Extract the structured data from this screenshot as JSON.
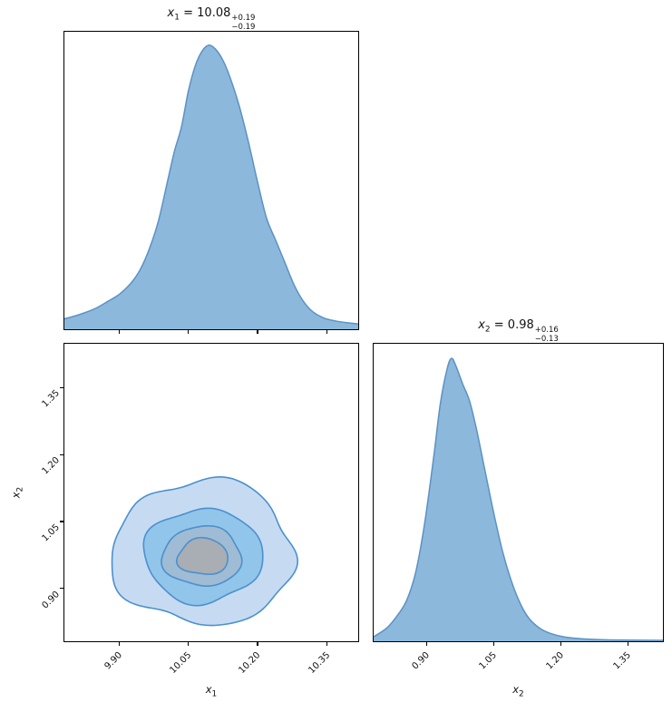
{
  "colors": {
    "kde_fill": "#8cb8dc",
    "kde_line": "#5b92c4",
    "contour_line": "#4a90ce",
    "contour_fills": [
      "#c6dbf2",
      "#92c5ea",
      "#9fbcd4",
      "#a8aeb4"
    ],
    "spine": "#000000",
    "text": "#111111"
  },
  "titles": {
    "x1": {
      "var": "x",
      "sub": "1",
      "eq": " = ",
      "value": "10.08",
      "plus": "+0.19",
      "minus": "−0.19"
    },
    "x2": {
      "var": "x",
      "sub": "2",
      "eq": " = ",
      "value": "0.98",
      "plus": "+0.16",
      "minus": "−0.13"
    }
  },
  "axis_labels": {
    "x1": {
      "var": "x",
      "sub": "1"
    },
    "x2": {
      "var": "x",
      "sub": "2"
    }
  },
  "chart_data": [
    {
      "id": "x1_marginal",
      "type": "area",
      "title": "x1 = 10.08 +0.19 / −0.19",
      "xlim": [
        9.78,
        10.42
      ],
      "xticks": [
        9.9,
        10.05,
        10.2,
        10.35
      ],
      "xtick_labels": [],
      "x": [
        9.78,
        9.81,
        9.845,
        9.875,
        9.9,
        9.925,
        9.945,
        9.965,
        9.985,
        10.005,
        10.02,
        10.035,
        10.05,
        10.065,
        10.08,
        10.095,
        10.11,
        10.125,
        10.14,
        10.16,
        10.18,
        10.2,
        10.22,
        10.24,
        10.26,
        10.28,
        10.3,
        10.32,
        10.345,
        10.37,
        10.395,
        10.42
      ],
      "density": [
        0.035,
        0.048,
        0.068,
        0.094,
        0.118,
        0.155,
        0.2,
        0.27,
        0.365,
        0.5,
        0.6,
        0.68,
        0.8,
        0.885,
        0.935,
        0.955,
        0.94,
        0.905,
        0.85,
        0.755,
        0.635,
        0.5,
        0.375,
        0.3,
        0.225,
        0.15,
        0.095,
        0.06,
        0.038,
        0.028,
        0.022,
        0.018
      ]
    },
    {
      "id": "joint",
      "type": "heatmap",
      "subtype": "kde-contour",
      "xlabel": "x1",
      "ylabel": "x2",
      "xlim": [
        9.78,
        10.42
      ],
      "ylim": [
        0.78,
        1.45
      ],
      "xticks": [
        9.9,
        10.05,
        10.2,
        10.35
      ],
      "xtick_labels": [
        "9.90",
        "10.05",
        "10.20",
        "10.35"
      ],
      "yticks": [
        0.9,
        1.05,
        1.2,
        1.35
      ],
      "ytick_labels": [
        "0.90",
        "1.05",
        "1.20",
        "1.35"
      ],
      "center": [
        10.082,
        0.975
      ],
      "contours": [
        {
          "rx": 0.198,
          "ry": 0.162,
          "offset": [
            0.0,
            0.004
          ],
          "fill_index": 0,
          "wobble": [
            [
              5,
              0.045,
              0.5
            ],
            [
              3,
              0.04,
              2.3
            ],
            [
              8,
              0.018,
              1.0
            ]
          ]
        },
        {
          "rx": 0.129,
          "ry": 0.105,
          "offset": [
            0.0,
            -0.002
          ],
          "fill_index": 1,
          "wobble": [
            [
              4,
              0.04,
              1.2
            ],
            [
              6,
              0.022,
              3.6
            ],
            [
              3,
              0.03,
              5.2
            ]
          ]
        },
        {
          "rx": 0.086,
          "ry": 0.067,
          "offset": [
            -0.002,
            -0.004
          ],
          "fill_index": 2,
          "wobble": [
            [
              3,
              0.045,
              2.2
            ],
            [
              5,
              0.028,
              0.9
            ]
          ]
        },
        {
          "rx": 0.055,
          "ry": 0.041,
          "offset": [
            0.0,
            -0.005
          ],
          "fill_index": 3,
          "wobble": [
            [
              3,
              0.065,
              1.8
            ],
            [
              4,
              0.035,
              4.5
            ]
          ]
        }
      ]
    },
    {
      "id": "x2_marginal",
      "type": "area",
      "title": "x2 = 0.98 +0.16 / −0.13",
      "xlabel": "x2",
      "xlim": [
        0.78,
        1.43
      ],
      "xticks": [
        0.9,
        1.05,
        1.2,
        1.35
      ],
      "xtick_labels": [
        "0.90",
        "1.05",
        "1.20",
        "1.35"
      ],
      "x": [
        0.78,
        0.81,
        0.835,
        0.855,
        0.875,
        0.895,
        0.915,
        0.93,
        0.945,
        0.955,
        0.965,
        0.98,
        0.995,
        1.01,
        1.03,
        1.05,
        1.07,
        1.09,
        1.11,
        1.13,
        1.155,
        1.18,
        1.21,
        1.25,
        1.3,
        1.36,
        1.43
      ],
      "density": [
        0.015,
        0.045,
        0.09,
        0.14,
        0.235,
        0.4,
        0.62,
        0.8,
        0.915,
        0.951,
        0.925,
        0.865,
        0.81,
        0.72,
        0.575,
        0.43,
        0.3,
        0.2,
        0.125,
        0.075,
        0.042,
        0.025,
        0.014,
        0.008,
        0.005,
        0.004,
        0.003
      ]
    }
  ]
}
